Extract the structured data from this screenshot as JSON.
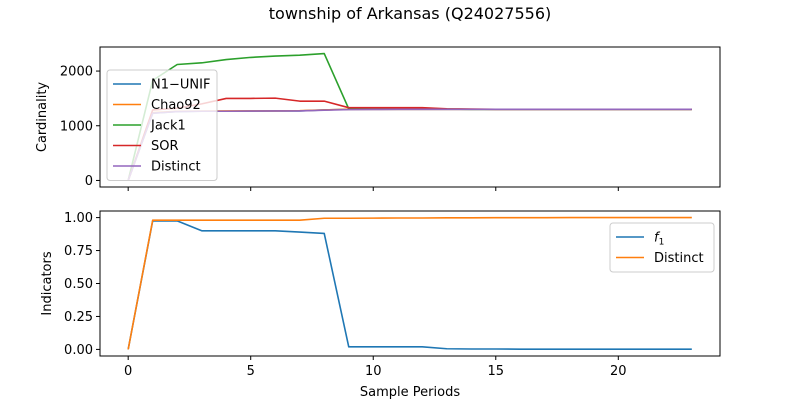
{
  "title": "township of Arkansas (Q24027556)",
  "chart_data": [
    {
      "type": "line",
      "ylabel": "Cardinality",
      "xlabel": "",
      "xlim": [
        -1.15,
        24.15
      ],
      "ylim": [
        -120,
        2440
      ],
      "xticks": [
        0,
        5,
        10,
        15,
        20
      ],
      "xtick_labels": [
        "",
        "",
        "",
        "",
        ""
      ],
      "yticks": [
        0,
        1000,
        2000
      ],
      "ytick_labels": [
        "0",
        "1000",
        "2000"
      ],
      "grid": false,
      "legend_position": "center-left",
      "series": [
        {
          "name": "N1−UNIF",
          "color": "#1f77b4",
          "x": [
            0,
            1,
            2,
            3,
            4,
            5,
            6,
            7,
            8,
            9,
            10,
            11,
            12,
            13,
            14,
            15,
            16,
            17,
            18,
            19,
            20,
            21,
            22,
            23
          ],
          "y": [
            0,
            1230,
            1260,
            1265,
            1265,
            1268,
            1270,
            1270,
            1290,
            1300,
            1300,
            1300,
            1300,
            1300,
            1300,
            1300,
            1300,
            1300,
            1300,
            1300,
            1300,
            1300,
            1300,
            1300
          ]
        },
        {
          "name": "Chao92",
          "color": "#ff7f0e",
          "x": [
            0,
            1,
            2,
            3,
            4,
            5,
            6,
            7,
            8,
            9,
            10,
            11,
            12,
            13,
            14,
            15,
            16,
            17,
            18,
            19,
            20,
            21,
            22,
            23
          ],
          "y": [
            0,
            1240,
            1265,
            1268,
            1270,
            1270,
            1270,
            1275,
            1290,
            1300,
            1300,
            1300,
            1300,
            1300,
            1300,
            1300,
            1300,
            1300,
            1300,
            1300,
            1300,
            1300,
            1300,
            1300
          ]
        },
        {
          "name": "Jack1",
          "color": "#2ca02c",
          "x": [
            0,
            1,
            2,
            3,
            4,
            5,
            6,
            7,
            8,
            9,
            10,
            11,
            12,
            13,
            14,
            15,
            16,
            17,
            18,
            19,
            20,
            21,
            22,
            23
          ],
          "y": [
            0,
            1830,
            2120,
            2150,
            2210,
            2250,
            2275,
            2290,
            2320,
            1310,
            1310,
            1310,
            1310,
            1305,
            1300,
            1300,
            1300,
            1300,
            1300,
            1300,
            1300,
            1300,
            1300,
            1300
          ]
        },
        {
          "name": "SOR",
          "color": "#d62728",
          "x": [
            0,
            1,
            2,
            3,
            4,
            5,
            6,
            7,
            8,
            9,
            10,
            11,
            12,
            13,
            14,
            15,
            16,
            17,
            18,
            19,
            20,
            21,
            22,
            23
          ],
          "y": [
            0,
            1290,
            1320,
            1400,
            1500,
            1500,
            1505,
            1450,
            1450,
            1330,
            1330,
            1330,
            1330,
            1310,
            1305,
            1300,
            1300,
            1300,
            1300,
            1300,
            1300,
            1300,
            1300,
            1300
          ]
        },
        {
          "name": "Distinct",
          "color": "#9467bd",
          "x": [
            0,
            1,
            2,
            3,
            4,
            5,
            6,
            7,
            8,
            9,
            10,
            11,
            12,
            13,
            14,
            15,
            16,
            17,
            18,
            19,
            20,
            21,
            22,
            23
          ],
          "y": [
            0,
            1230,
            1260,
            1265,
            1265,
            1268,
            1270,
            1270,
            1285,
            1295,
            1298,
            1300,
            1300,
            1300,
            1300,
            1300,
            1300,
            1300,
            1300,
            1300,
            1300,
            1300,
            1300,
            1300
          ]
        }
      ]
    },
    {
      "type": "line",
      "ylabel": "Indicators",
      "xlabel": "Sample Periods",
      "xlim": [
        -1.15,
        24.15
      ],
      "ylim": [
        -0.05,
        1.05
      ],
      "xticks": [
        0,
        5,
        10,
        15,
        20
      ],
      "xtick_labels": [
        "0",
        "5",
        "10",
        "15",
        "20"
      ],
      "yticks": [
        0.0,
        0.25,
        0.5,
        0.75,
        1.0
      ],
      "ytick_labels": [
        "0.00",
        "0.25",
        "0.50",
        "0.75",
        "1.00"
      ],
      "grid": false,
      "legend_position": "upper-right",
      "series": [
        {
          "name_main": "f",
          "name_sub": "1",
          "color": "#1f77b4",
          "x": [
            0,
            1,
            2,
            3,
            4,
            5,
            6,
            7,
            8,
            9,
            10,
            11,
            12,
            13,
            14,
            15,
            16,
            17,
            18,
            19,
            20,
            21,
            22,
            23
          ],
          "y": [
            0.0,
            0.975,
            0.975,
            0.9,
            0.9,
            0.9,
            0.9,
            0.89,
            0.88,
            0.02,
            0.02,
            0.02,
            0.02,
            0.005,
            0.003,
            0.003,
            0.002,
            0.002,
            0.002,
            0.002,
            0.002,
            0.002,
            0.002,
            0.002
          ]
        },
        {
          "name": "Distinct",
          "color": "#ff7f0e",
          "x": [
            0,
            1,
            2,
            3,
            4,
            5,
            6,
            7,
            8,
            9,
            10,
            11,
            12,
            13,
            14,
            15,
            16,
            17,
            18,
            19,
            20,
            21,
            22,
            23
          ],
          "y": [
            0.0,
            0.98,
            0.98,
            0.98,
            0.98,
            0.98,
            0.98,
            0.98,
            0.995,
            0.995,
            0.996,
            0.997,
            0.997,
            0.998,
            0.998,
            0.999,
            0.999,
            0.999,
            1.0,
            1.0,
            1.0,
            1.0,
            1.0,
            1.0
          ]
        }
      ]
    }
  ]
}
